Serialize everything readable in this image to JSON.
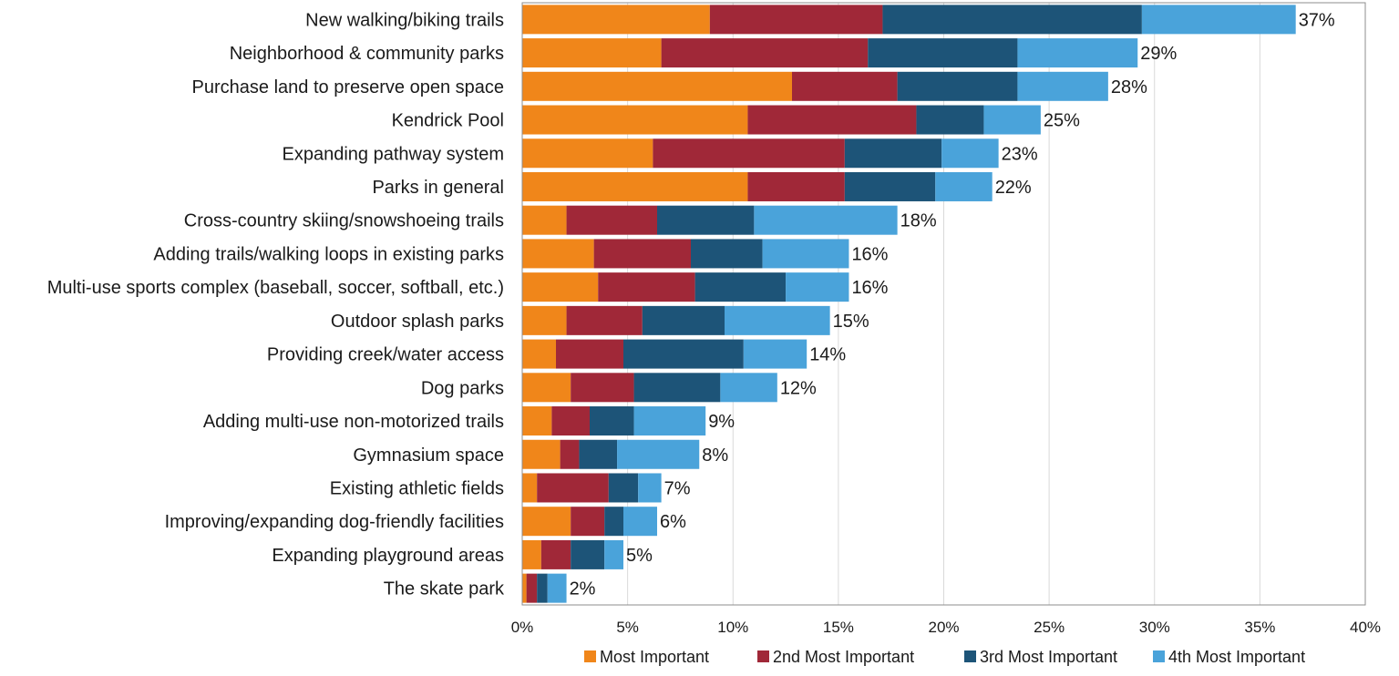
{
  "chart_data": {
    "type": "bar",
    "orientation": "horizontal",
    "stacked": true,
    "title": "",
    "xlabel": "",
    "ylabel": "",
    "xlim": [
      0,
      40
    ],
    "grid": true,
    "legend_position": "bottom",
    "x_ticks": [
      "0%",
      "5%",
      "10%",
      "15%",
      "20%",
      "25%",
      "30%",
      "35%",
      "40%"
    ],
    "categories": [
      "New walking/biking trails",
      "Neighborhood & community parks",
      "Purchase land to preserve open space",
      "Kendrick Pool",
      "Expanding pathway system",
      "Parks in general",
      "Cross-country skiing/snowshoeing trails",
      "Adding trails/walking loops in existing parks",
      "Multi-use sports complex (baseball, soccer, softball, etc.)",
      "Outdoor splash parks",
      "Providing creek/water access",
      "Dog parks",
      "Adding multi-use non-motorized trails",
      "Gymnasium space",
      "Existing athletic fields",
      "Improving/expanding dog-friendly facilities",
      "Expanding playground areas",
      "The skate park"
    ],
    "totals": [
      "37%",
      "29%",
      "28%",
      "25%",
      "23%",
      "22%",
      "18%",
      "16%",
      "16%",
      "15%",
      "14%",
      "12%",
      "9%",
      "8%",
      "7%",
      "6%",
      "5%",
      "2%"
    ],
    "series": [
      {
        "name": "Most Important",
        "color": "#F0861A",
        "values": [
          8.9,
          6.6,
          12.8,
          10.7,
          6.2,
          10.7,
          2.1,
          3.4,
          3.6,
          2.1,
          1.6,
          2.3,
          1.4,
          1.8,
          0.7,
          2.3,
          0.9,
          0.2
        ]
      },
      {
        "name": "2nd Most Important",
        "color": "#A02838",
        "values": [
          8.2,
          9.8,
          5.0,
          8.0,
          9.1,
          4.6,
          4.3,
          4.6,
          4.6,
          3.6,
          3.2,
          3.0,
          1.8,
          0.9,
          3.4,
          1.6,
          1.4,
          0.5
        ]
      },
      {
        "name": "3rd Most Important",
        "color": "#1D5478",
        "values": [
          12.3,
          7.1,
          5.7,
          3.2,
          4.6,
          4.3,
          4.6,
          3.4,
          4.3,
          3.9,
          5.7,
          4.1,
          2.1,
          1.8,
          1.4,
          0.9,
          1.6,
          0.5
        ]
      },
      {
        "name": "4th Most Important",
        "color": "#4AA3DA",
        "values": [
          7.3,
          5.7,
          4.3,
          2.7,
          2.7,
          2.7,
          6.8,
          4.1,
          3.0,
          5.0,
          3.0,
          2.7,
          3.4,
          3.9,
          1.1,
          1.6,
          0.9,
          0.9
        ]
      }
    ]
  }
}
